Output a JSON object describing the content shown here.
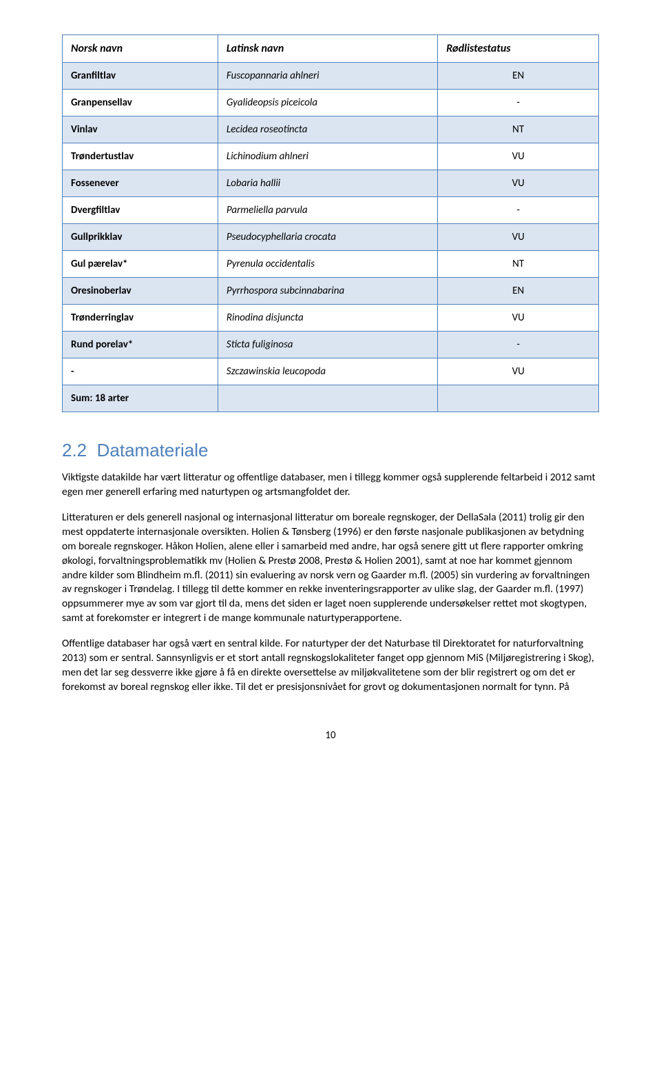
{
  "table": {
    "border_color": "#4f81bd",
    "shaded_bg": "#dbe5f1",
    "plain_bg": "#ffffff",
    "headers": [
      "Norsk navn",
      "Latinsk navn",
      "Rødlistestatus"
    ],
    "rows": [
      {
        "c0": "Granfiltlav",
        "c1": "Fuscopannaria ahlneri",
        "c2": "EN",
        "shaded": true
      },
      {
        "c0": "Granpensellav",
        "c1": "Gyalideopsis piceicola",
        "c2": "-",
        "shaded": false
      },
      {
        "c0": "Vinlav",
        "c1": "Lecidea roseotincta",
        "c2": "NT",
        "shaded": true
      },
      {
        "c0": "Trøndertustlav",
        "c1": "Lichinodium ahlneri",
        "c2": "VU",
        "shaded": false
      },
      {
        "c0": "Fossenever",
        "c1": "Lobaria hallii",
        "c2": "VU",
        "shaded": true
      },
      {
        "c0": "Dvergfiltlav",
        "c1": "Parmeliella parvula",
        "c2": "-",
        "shaded": false
      },
      {
        "c0": "Gullprikklav",
        "c1": "Pseudocyphellaria crocata",
        "c2": "VU",
        "shaded": true
      },
      {
        "c0": "Gul pærelav*",
        "c1": "Pyrenula occidentalis",
        "c2": "NT",
        "shaded": false
      },
      {
        "c0": "Oresinoberlav",
        "c1": "Pyrrhospora subcinnabarina",
        "c2": "EN",
        "shaded": true
      },
      {
        "c0": "Trønderringlav",
        "c1": "Rinodina disjuncta",
        "c2": "VU",
        "shaded": false
      },
      {
        "c0": "Rund porelav*",
        "c1": "Sticta fuliginosa",
        "c2": "-",
        "shaded": true
      },
      {
        "c0": "-",
        "c1": "Szczawinskia leucopoda",
        "c2": "VU",
        "shaded": false
      }
    ],
    "sum_row": {
      "c0": "Sum: 18 arter",
      "c1": "",
      "c2": "",
      "shaded": true
    }
  },
  "section": {
    "number": "2.2",
    "title": "Datamateriale",
    "heading_color": "#4f81bd"
  },
  "paragraphs": [
    "Viktigste datakilde har vært litteratur og offentlige databaser, men i tillegg kommer også supplerende feltarbeid i 2012 samt egen mer generell erfaring med naturtypen og artsmangfoldet der.",
    "Litteraturen er dels generell nasjonal og internasjonal litteratur om boreale regnskoger, der DellaSala (2011) trolig gir den mest oppdaterte internasjonale oversikten. Holien & Tønsberg (1996) er den første nasjonale publikasjonen av betydning om boreale regnskoger. Håkon Holien, alene eller i samarbeid med andre, har også senere gitt ut flere rapporter omkring økologi, forvaltningsproblematikk mv (Holien & Prestø 2008, Prestø & Holien 2001), samt at noe har kommet gjennom andre kilder som Blindheim m.fl. (2011) sin evaluering av norsk vern og Gaarder m.fl. (2005) sin vurdering av forvaltningen av regnskoger i Trøndelag. I tillegg til dette kommer en rekke inventeringsrapporter av ulike slag, der Gaarder m.fl. (1997) oppsummerer mye av som var gjort til da, mens det siden er laget noen supplerende undersøkelser rettet mot skogtypen, samt at forekomster er integrert i de mange kommunale naturtyperapportene.",
    "Offentlige databaser har også vært en sentral kilde. For naturtyper der det Naturbase til Direktoratet for naturforvaltning 2013) som er sentral. Sannsynligvis er et stort antall regnskogslokaliteter fanget opp gjennom MiS (Miljøregistrering i Skog), men det lar seg dessverre ikke gjøre å få en direkte oversettelse av miljøkvalitetene som der blir registrert og om det er forekomst av boreal regnskog eller ikke. Til det er presisjonsnivået for grovt og dokumentasjonen normalt for tynn. På"
  ],
  "page_number": "10"
}
